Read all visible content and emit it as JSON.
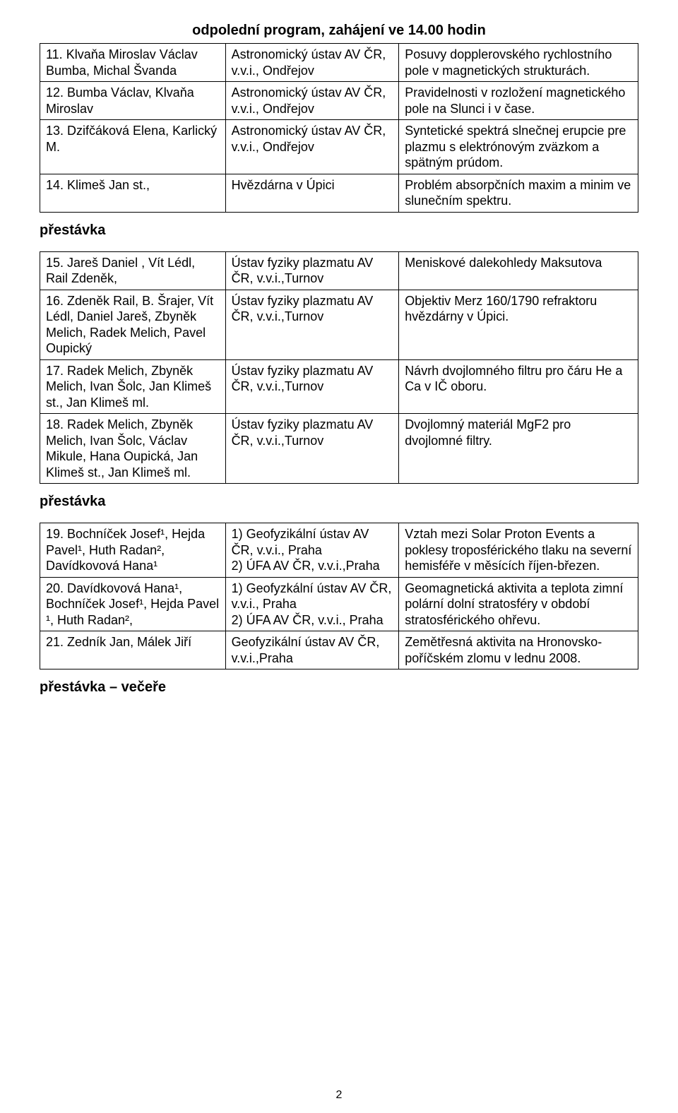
{
  "heading": "odpolední program, zahájení ve 14.00 hodin",
  "breaks": {
    "b1": "přestávka",
    "b2": "přestávka",
    "b3": "přestávka – večeře"
  },
  "pageNumber": "2",
  "table1": {
    "rows": [
      {
        "a": "11. Klvaňa Miroslav Václav Bumba, Michal Švanda",
        "b": "Astronomický ústav AV ČR, v.v.i., Ondřejov",
        "c": "Posuvy dopplerovského rychlostního pole v magnetických strukturách."
      },
      {
        "a": "12. Bumba Václav, Klvaňa Miroslav",
        "b": "Astronomický ústav AV ČR, v.v.i., Ondřejov",
        "c": "Pravidelnosti v rozložení magnetického pole na Slunci i v čase."
      },
      {
        "a": "13. Dzifčáková Elena, Karlický M.",
        "b": "Astronomický ústav AV ČR, v.v.i., Ondřejov",
        "c": "Syntetické spektrá slnečnej erupcie pre plazmu s elektrónovým zväzkom a spätným prúdom."
      },
      {
        "a": "14. Klimeš Jan st.,",
        "b": "Hvězdárna v Úpici",
        "c": "Problém absorpčních maxim a minim ve slunečním spektru."
      }
    ]
  },
  "table2": {
    "rows": [
      {
        "a": "15. Jareš  Daniel , Vít Lédl, Rail  Zdeněk,",
        "b": "Ústav fyziky plazmatu AV ČR, v.v.i.,Turnov",
        "c": "Meniskové dalekohledy Maksutova"
      },
      {
        "a": "16. Zdeněk Rail, B. Šrajer, Vít Lédl, Daniel Jareš, Zbyněk Melich, Radek Melich, Pavel Oupický",
        "b": "Ústav fyziky plazmatu AV ČR, v.v.i.,Turnov",
        "c": "Objektiv Merz 160/1790 refraktoru hvězdárny v Úpici."
      },
      {
        "a": "17. Radek Melich, Zbyněk Melich, Ivan Šolc, Jan Klimeš st., Jan Klimeš ml.",
        "b": "Ústav fyziky plazmatu AV ČR, v.v.i.,Turnov",
        "c": "Návrh dvojlomného filtru pro čáru He a Ca v IČ oboru."
      },
      {
        "a": "18. Radek Melich, Zbyněk Melich, Ivan Šolc, Václav Mikule, Hana Oupická, Jan Klimeš st., Jan Klimeš ml.",
        "b": "Ústav fyziky plazmatu AV ČR, v.v.i.,Turnov",
        "c": "Dvojlomný materiál MgF2 pro dvojlomné filtry."
      }
    ]
  },
  "table3": {
    "rows": [
      {
        "a": "19. Bochníček Josef¹, Hejda Pavel¹, Huth Radan², Davídkovová Hana¹",
        "b": "1) Geofyzikální ústav AV ČR, v.v.i., Praha\n2) ÚFA  AV ČR, v.v.i.,Praha",
        "c": "Vztah mezi Solar Proton Events a poklesy troposférického tlaku na severní hemisféře v měsících říjen-březen."
      },
      {
        "a": "20. Davídkovová Hana¹, Bochníček Josef¹, Hejda Pavel ¹, Huth Radan²,",
        "b": "1) Geofyzkální ústav AV ČR, v.v.i., Praha\n2) ÚFA AV ČR, v.v.i., Praha",
        "c": "Geomagnetická aktivita a teplota zimní polární dolní stratosféry v období stratosférického ohřevu."
      },
      {
        "a": "21. Zedník Jan, Málek Jiří",
        "b": "Geofyzikální ústav AV ČR, v.v.i.,Praha",
        "c": "Zemětřesná aktivita na Hronovsko-poříčském zlomu v lednu 2008."
      }
    ]
  }
}
